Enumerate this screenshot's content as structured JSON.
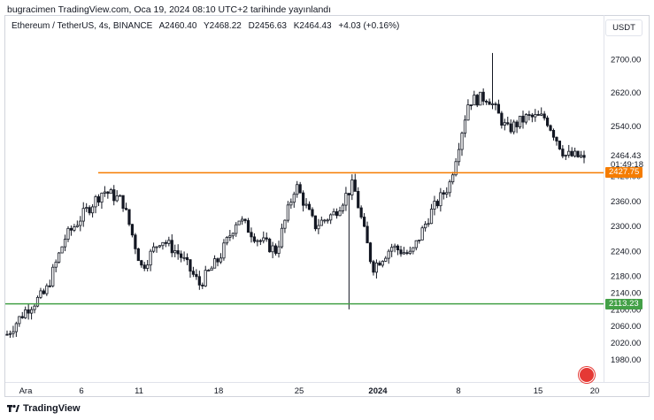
{
  "header": {
    "text": "bugracimen TradingView.com, Oca 19, 2024 08:10 UTC+2 tarihinde yayınlandı"
  },
  "symbol": {
    "name": "Ethereum / TetherUS, 4s, BINANCE",
    "open": "A2460.40",
    "high": "Y2468.22",
    "low": "D2456.63",
    "close": "K2464.43",
    "change": "+4.03 (+0.16%)"
  },
  "currency": "USDT",
  "footer": {
    "brand": "TradingView"
  },
  "chart_data": {
    "type": "candlestick",
    "y_axis": {
      "ticks": [
        1980,
        2020,
        2060,
        2100,
        2140,
        2180,
        2240,
        2300,
        2360,
        2420,
        2540,
        2620,
        2700
      ],
      "tick_labels": [
        "1980.00",
        "2020.00",
        "2060.00",
        "2100.00",
        "2140.00",
        "2180.00",
        "2240.00",
        "2300.00",
        "2360.00",
        "2420.00",
        "2540.00",
        "2620.00",
        "2700.00"
      ],
      "range": [
        1960,
        2720
      ]
    },
    "x_axis": {
      "tick_labels": [
        "Ara",
        "6",
        "11",
        "18",
        "25",
        "2024",
        "8",
        "15",
        "20"
      ]
    },
    "horizontal_lines": [
      {
        "value": 2427.75,
        "label": "2427.75",
        "color": "#f57c00"
      },
      {
        "value": 2113.23,
        "label": "2113.23",
        "color": "#43a047"
      }
    ],
    "last_price": {
      "value": "2464.43",
      "countdown": "01:49:18"
    },
    "price_path_keypoints": [
      {
        "date": "Ara 1",
        "close": 2040
      },
      {
        "date": "Ara 3",
        "close": 2100
      },
      {
        "date": "Ara 4",
        "close": 2140
      },
      {
        "date": "Ara 6",
        "close": 2270
      },
      {
        "date": "Ara 8",
        "close": 2330
      },
      {
        "date": "Ara 9",
        "close": 2385
      },
      {
        "date": "Ara 11",
        "close": 2360
      },
      {
        "date": "Ara 12",
        "close": 2200
      },
      {
        "date": "Ara 14",
        "close": 2270
      },
      {
        "date": "Ara 16",
        "close": 2230
      },
      {
        "date": "Ara 18",
        "close": 2160
      },
      {
        "date": "Ara 20",
        "close": 2220
      },
      {
        "date": "Ara 22",
        "close": 2320
      },
      {
        "date": "Ara 24",
        "close": 2270
      },
      {
        "date": "Ara 26",
        "close": 2240
      },
      {
        "date": "Ara 28",
        "close": 2400
      },
      {
        "date": "Ara 30",
        "close": 2300
      },
      {
        "date": "Oca 1",
        "close": 2330
      },
      {
        "date": "Oca 2",
        "close": 2400
      },
      {
        "date": "Oca 3",
        "close": 2200
      },
      {
        "date": "Oca 5",
        "close": 2250
      },
      {
        "date": "Oca 7",
        "close": 2230
      },
      {
        "date": "Oca 8",
        "close": 2330
      },
      {
        "date": "Oca 9",
        "close": 2400
      },
      {
        "date": "Oca 10",
        "close": 2600
      },
      {
        "date": "Oca 12",
        "close": 2610
      },
      {
        "date": "Oca 14",
        "close": 2530
      },
      {
        "date": "Oca 16",
        "close": 2560
      },
      {
        "date": "Oca 17",
        "close": 2560
      },
      {
        "date": "Oca 18",
        "close": 2470
      },
      {
        "date": "Oca 19",
        "close": 2464.43
      }
    ]
  }
}
